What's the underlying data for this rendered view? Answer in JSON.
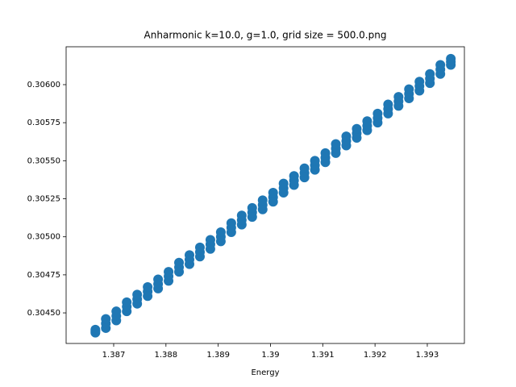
{
  "chart_data": {
    "type": "scatter",
    "title": "Anharmonic  k=10.0, g=1.0, grid size = 500.0.png",
    "xlabel": "Energy",
    "color": "#1f77b4",
    "x": [
      1.38665,
      1.38665,
      1.38665,
      1.38685,
      1.38685,
      1.38685,
      1.38705,
      1.38705,
      1.38705,
      1.38725,
      1.38725,
      1.38725,
      1.38745,
      1.38745,
      1.38745,
      1.38765,
      1.38765,
      1.38765,
      1.38785,
      1.38785,
      1.38785,
      1.38805,
      1.38805,
      1.38805,
      1.38825,
      1.38825,
      1.38825,
      1.38845,
      1.38845,
      1.38845,
      1.38865,
      1.38865,
      1.38865,
      1.38885,
      1.38885,
      1.38885,
      1.38905,
      1.38905,
      1.38905,
      1.38925,
      1.38925,
      1.38925,
      1.38945,
      1.38945,
      1.38945,
      1.38965,
      1.38965,
      1.38965,
      1.38985,
      1.38985,
      1.38985,
      1.39005,
      1.39005,
      1.39005,
      1.39025,
      1.39025,
      1.39025,
      1.39045,
      1.39045,
      1.39045,
      1.39065,
      1.39065,
      1.39065,
      1.39085,
      1.39085,
      1.39085,
      1.39105,
      1.39105,
      1.39105,
      1.39125,
      1.39125,
      1.39125,
      1.39145,
      1.39145,
      1.39145,
      1.39165,
      1.39165,
      1.39165,
      1.39185,
      1.39185,
      1.39185,
      1.39205,
      1.39205,
      1.39205,
      1.39225,
      1.39225,
      1.39225,
      1.39245,
      1.39245,
      1.39245,
      1.39265,
      1.39265,
      1.39265,
      1.39285,
      1.39285,
      1.39285,
      1.39305,
      1.39305,
      1.39305,
      1.39325,
      1.39325,
      1.39325,
      1.39345,
      1.39345,
      1.39345
    ],
    "values": [
      0.30437,
      0.30438,
      0.30439,
      0.3044,
      0.30443,
      0.30446,
      0.30445,
      0.30448,
      0.30451,
      0.30451,
      0.30454,
      0.30457,
      0.30456,
      0.30459,
      0.30462,
      0.30461,
      0.30464,
      0.30467,
      0.30466,
      0.30469,
      0.30472,
      0.30471,
      0.30474,
      0.30477,
      0.30477,
      0.3048,
      0.30483,
      0.30482,
      0.30485,
      0.30488,
      0.30487,
      0.3049,
      0.30493,
      0.30492,
      0.30495,
      0.30498,
      0.30497,
      0.305,
      0.30503,
      0.30503,
      0.30506,
      0.30509,
      0.30508,
      0.30511,
      0.30514,
      0.30513,
      0.30516,
      0.30519,
      0.30518,
      0.30521,
      0.30524,
      0.30523,
      0.30526,
      0.30529,
      0.30529,
      0.30532,
      0.30535,
      0.30534,
      0.30537,
      0.3054,
      0.30539,
      0.30542,
      0.30545,
      0.30544,
      0.30547,
      0.3055,
      0.30549,
      0.30552,
      0.30555,
      0.30555,
      0.30558,
      0.30561,
      0.3056,
      0.30563,
      0.30566,
      0.30565,
      0.30568,
      0.30571,
      0.3057,
      0.30573,
      0.30576,
      0.30575,
      0.30578,
      0.30581,
      0.30581,
      0.30584,
      0.30587,
      0.30586,
      0.30589,
      0.30592,
      0.30591,
      0.30594,
      0.30597,
      0.30596,
      0.30599,
      0.30602,
      0.30601,
      0.30604,
      0.30607,
      0.30607,
      0.3061,
      0.30613,
      0.30613,
      0.30615,
      0.30617
    ],
    "xlim": [
      1.38609,
      1.39371
    ],
    "xticks": [
      1.387,
      1.388,
      1.389,
      1.39,
      1.391,
      1.392,
      1.393
    ],
    "ylim": [
      0.304299,
      0.306249
    ],
    "yticks": [
      {
        "value": 0.3045,
        "label": "0.30450"
      },
      {
        "value": 0.30475,
        "label": "0.30475"
      },
      {
        "value": 0.305,
        "label": "0.30500"
      },
      {
        "value": 0.30525,
        "label": "0.30525"
      },
      {
        "value": 0.3055,
        "label": "0.30550"
      },
      {
        "value": 0.30575,
        "label": "0.30575"
      },
      {
        "value": 0.306,
        "label": "0.30600"
      }
    ]
  }
}
